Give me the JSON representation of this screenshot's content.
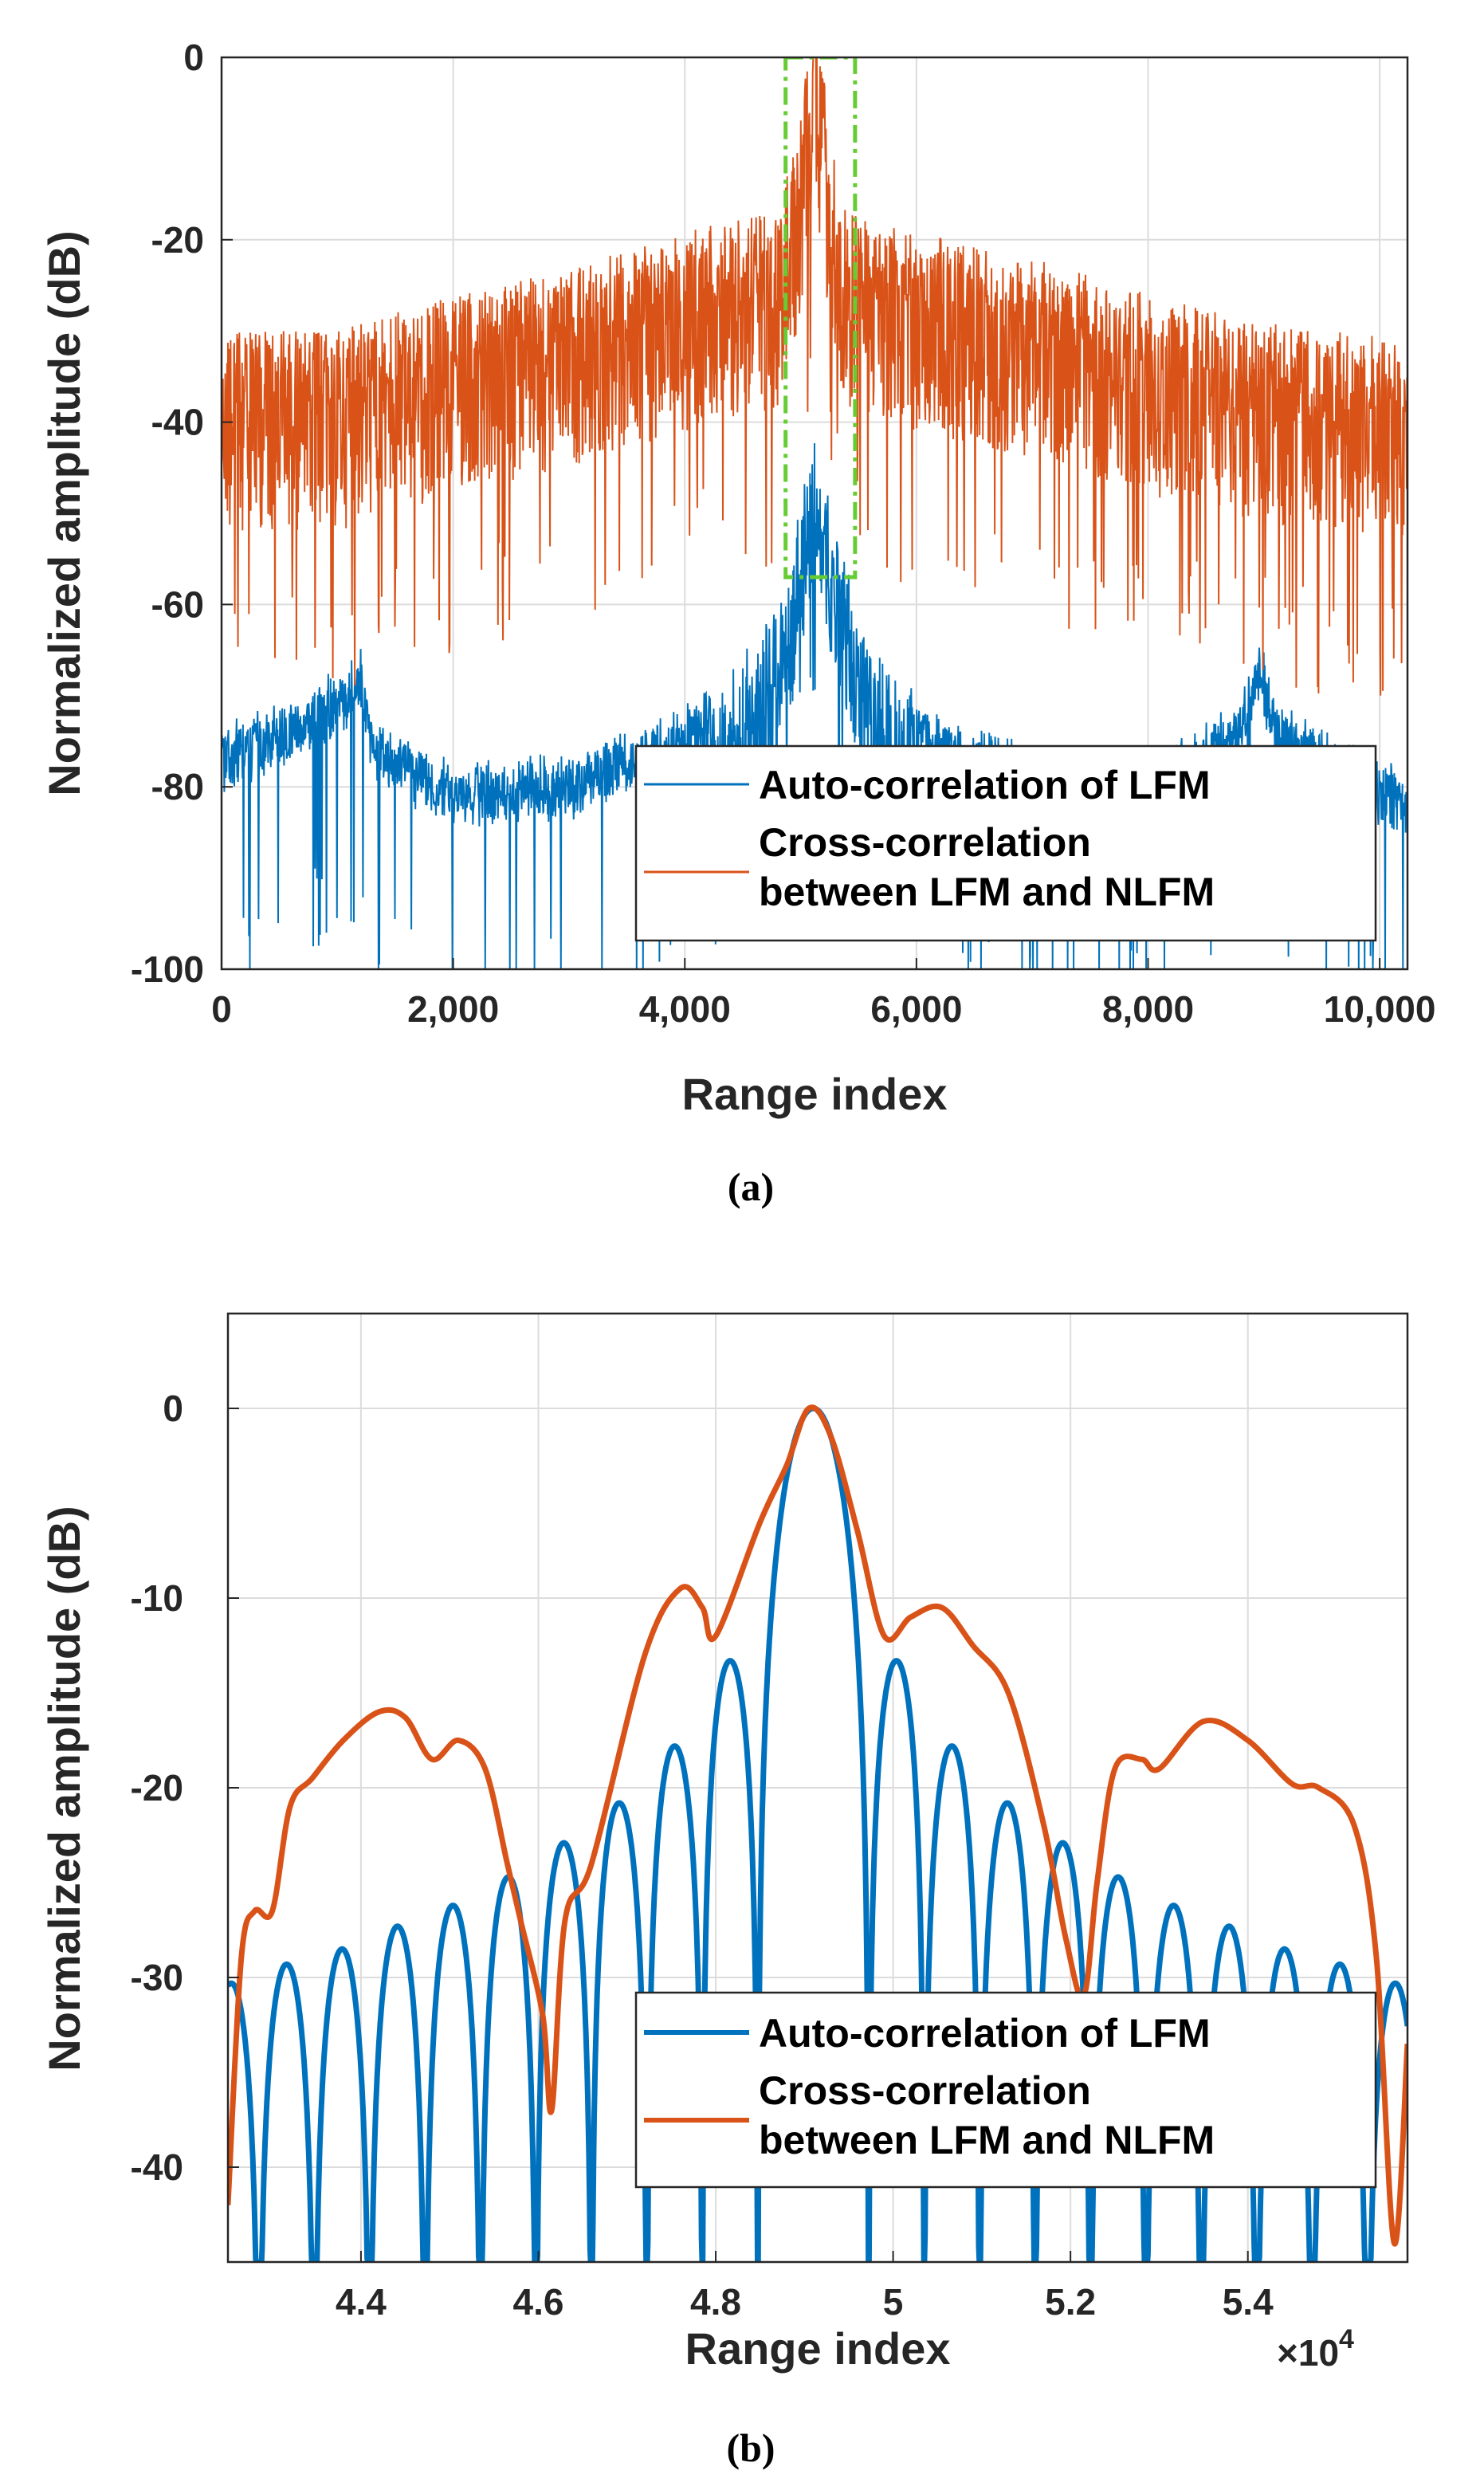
{
  "chart_data": [
    {
      "type": "line",
      "panel": "a",
      "caption": "(a)",
      "xlabel": "Range index",
      "ylabel": "Normalized amplitude (dB)",
      "xlim": [
        0,
        10240
      ],
      "ylim": [
        -100,
        0
      ],
      "xticks": [
        0,
        2000,
        4000,
        6000,
        8000,
        10000
      ],
      "xtick_labels": [
        "0",
        "2,000",
        "4,000",
        "6,000",
        "8,000",
        "10,000"
      ],
      "yticks": [
        0,
        -20,
        -40,
        -60,
        -80,
        -100
      ],
      "ytick_labels": [
        "0",
        "-20",
        "-40",
        "-60",
        "-80",
        "-100"
      ],
      "grid": true,
      "legend_position": "bottom-right",
      "highlight_box": {
        "x_range": [
          4870,
          5470
        ],
        "y_range": [
          -57,
          0
        ],
        "color": "#66cc33",
        "style": "dash-dot"
      },
      "series": [
        {
          "name": "Auto-correlation of LFM",
          "color": "#0072BD",
          "x": [
            0,
            600,
            1100,
            1200,
            1300,
            2000,
            3000,
            4000,
            4600,
            4900,
            5000,
            5120,
            5240,
            5400,
            5600,
            6200,
            7200,
            8200,
            8800,
            8950,
            9000,
            9100,
            9600,
            10240
          ],
          "values": [
            -75,
            -72,
            -68,
            -66,
            -74,
            -79,
            -78,
            -73,
            -66,
            -58,
            -50,
            -42,
            -50,
            -58,
            -66,
            -74,
            -78,
            -77,
            -72,
            -66,
            -67,
            -72,
            -76,
            -80
          ]
        },
        {
          "name": "Cross-correlation between LFM and NLFM",
          "color": "#D95319",
          "x": [
            0,
            1000,
            2000,
            3000,
            4000,
            4800,
            5000,
            5120,
            5240,
            5400,
            6000,
            7000,
            8000,
            9000,
            10240
          ],
          "values": [
            -38,
            -38,
            -34,
            -31,
            -27,
            -25,
            -15,
            0,
            -15,
            -25,
            -27,
            -30,
            -34,
            -37,
            -39
          ]
        }
      ]
    },
    {
      "type": "line",
      "panel": "b",
      "caption": "(b)",
      "xlabel": "Range index",
      "ylabel": "Normalized amplitude (dB)",
      "x_multiplier": "×10",
      "x_multiplier_exp": "4",
      "xlim": [
        4.25,
        5.58
      ],
      "ylim": [
        -45,
        5
      ],
      "xticks": [
        4.4,
        4.6,
        4.8,
        5.0,
        5.2,
        5.4
      ],
      "xtick_labels": [
        "4.4",
        "4.6",
        "4.8",
        "5",
        "5.2",
        "5.4"
      ],
      "yticks": [
        0,
        -10,
        -20,
        -30,
        -40
      ],
      "ytick_labels": [
        "0",
        "-10",
        "-20",
        "-30",
        "-40"
      ],
      "grid": true,
      "legend_position": "bottom-right",
      "series": [
        {
          "name": "Auto-correlation of LFM",
          "color": "#0072BD",
          "center": 4.91,
          "null_spacing": 0.0625,
          "floor": -45,
          "lobe_peaks": [
            -13.3,
            -17.8,
            -20.8,
            -22.9,
            -24.7,
            -26.2,
            -27.3,
            -28.5,
            -29.3,
            -30.3
          ],
          "lobe_shape": [
            0.3,
            0.5,
            0.3,
            0.1,
            0.2,
            0.5,
            0.7,
            0.9,
            0.8,
            1.0
          ]
        },
        {
          "name": "Cross-correlation between LFM and NLFM",
          "color": "#D95319",
          "x": [
            4.25,
            4.265,
            4.28,
            4.3,
            4.32,
            4.345,
            4.38,
            4.42,
            4.45,
            4.48,
            4.51,
            4.54,
            4.565,
            4.58,
            4.605,
            4.615,
            4.63,
            4.66,
            4.72,
            4.76,
            4.785,
            4.8,
            4.85,
            4.88,
            4.905,
            4.93,
            4.96,
            4.99,
            5.02,
            5.055,
            5.09,
            5.13,
            5.17,
            5.195,
            5.215,
            5.23,
            5.25,
            5.28,
            5.3,
            5.35,
            5.4,
            5.45,
            5.48,
            5.52,
            5.545,
            5.565,
            5.58
          ],
          "values": [
            -42,
            -29,
            -26.5,
            -26.5,
            -21,
            -19.5,
            -17.5,
            -16,
            -16.3,
            -18.5,
            -17.5,
            -19,
            -24,
            -27,
            -32,
            -37,
            -27,
            -24,
            -13,
            -9.5,
            -10.5,
            -12,
            -6,
            -3,
            0,
            -1.5,
            -6.5,
            -12,
            -11,
            -10.5,
            -12.5,
            -15,
            -22,
            -28,
            -31,
            -25,
            -19,
            -18.5,
            -19,
            -16.5,
            -17.5,
            -19.8,
            -20,
            -22,
            -29,
            -44,
            -33.5
          ]
        }
      ]
    }
  ]
}
